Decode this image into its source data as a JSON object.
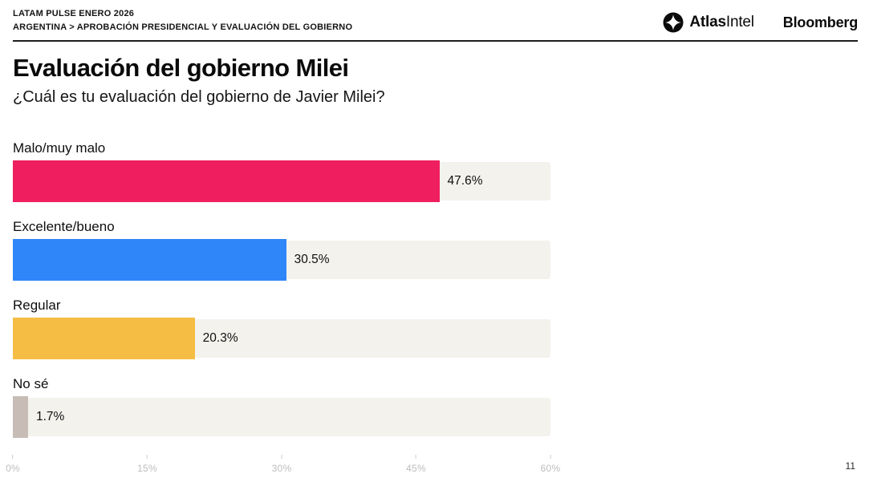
{
  "header": {
    "line1": "LATAM PULSE ENERO 2026",
    "line2": "ARGENTINA > APROBACIÓN PRESIDENCIAL Y EVALUACIÓN DEL GOBIERNO",
    "logos": {
      "atlasintel_bold": "Atlas",
      "atlasintel_regular": "Intel",
      "bloomberg": "Bloomberg"
    }
  },
  "title": "Evaluación del gobierno Milei",
  "subtitle": "¿Cuál es tu evaluación del gobierno de Javier Milei?",
  "page_number": "11",
  "chart_data": {
    "type": "bar",
    "orientation": "horizontal",
    "title": "Evaluación del gobierno Milei",
    "subtitle": "¿Cuál es tu evaluación del gobierno de Javier Milei?",
    "categories": [
      "Malo/muy malo",
      "Excelente/bueno",
      "Regular",
      "No sé"
    ],
    "values": [
      47.6,
      30.5,
      20.3,
      1.7
    ],
    "value_labels": [
      "47.6%",
      "30.5%",
      "20.3%",
      "1.7%"
    ],
    "colors": [
      "#EF1E5E",
      "#2F86F8",
      "#F6BD44",
      "#C7BDB6"
    ],
    "track_color": "#F3F2ED",
    "xlabel": "",
    "ylabel": "",
    "xlim": [
      0,
      60
    ],
    "x_ticks": [
      "0%",
      "15%",
      "30%",
      "45%",
      "60%"
    ],
    "grid": false,
    "legend": false
  }
}
